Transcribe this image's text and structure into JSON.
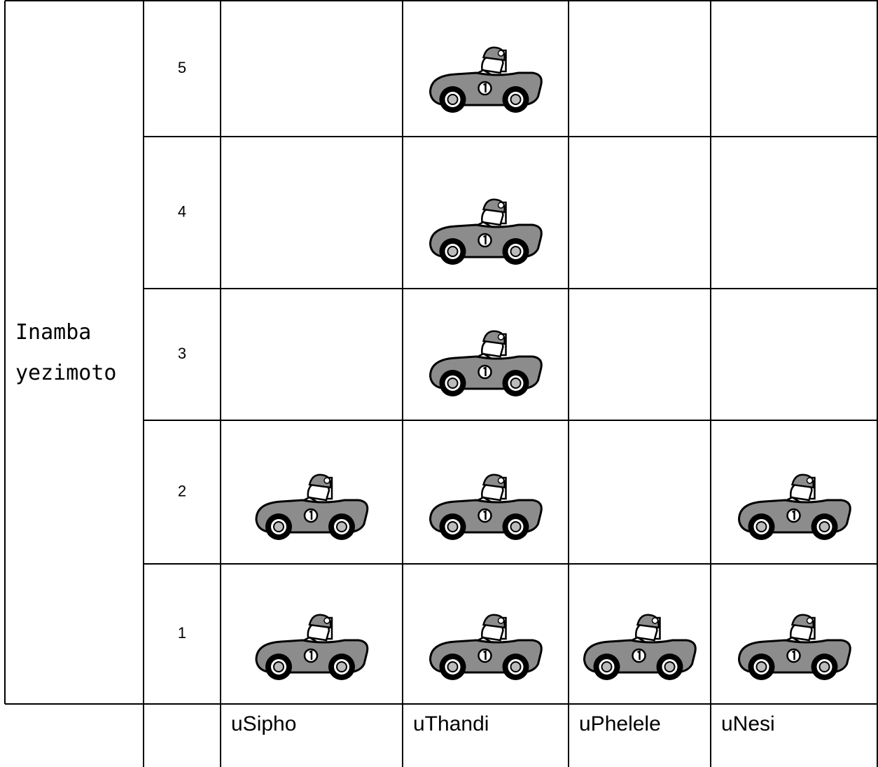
{
  "chart_data": {
    "type": "pictograph",
    "y_label": "Inamba yezimoto",
    "categories": [
      "uSipho",
      "uThandi",
      "uPhelele",
      "uNesi"
    ],
    "values": [
      2,
      5,
      1,
      2
    ],
    "yticks": [
      1,
      2,
      3,
      4,
      5
    ]
  }
}
